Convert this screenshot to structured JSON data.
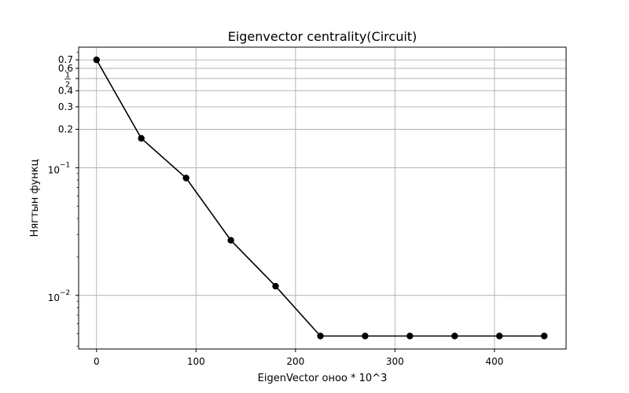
{
  "chart_data": {
    "type": "line",
    "title": "Eigenvector centrality(Circuit)",
    "xlabel": "EigenVector оноо * 10^3",
    "ylabel": "Нягтын функц",
    "yscale": "log",
    "xlim": [
      -18,
      472
    ],
    "ylim": [
      0.0038,
      0.88
    ],
    "x_ticks": [
      0,
      100,
      200,
      300,
      400
    ],
    "x_tick_labels": [
      "0",
      "100",
      "200",
      "300",
      "400"
    ],
    "y_ticks": [
      {
        "value": 0.7,
        "label": "0.7"
      },
      {
        "value": 0.6,
        "label": "0.6"
      },
      {
        "value": 0.5,
        "label": "1/2"
      },
      {
        "value": 0.4,
        "label": "0.4"
      },
      {
        "value": 0.3,
        "label": "0.3"
      },
      {
        "value": 0.2,
        "label": "0.2"
      },
      {
        "value": 0.1,
        "label": "10^-1"
      },
      {
        "value": 0.01,
        "label": "10^-2"
      }
    ],
    "grid": true,
    "color": "#000000",
    "marker": "circle",
    "series": [
      {
        "x": [
          0,
          45,
          90,
          135,
          180,
          225,
          270,
          315,
          360,
          405,
          450
        ],
        "values": [
          0.7,
          0.17,
          0.083,
          0.027,
          0.0118,
          0.0048,
          0.0048,
          0.0048,
          0.0048,
          0.0048,
          0.0048
        ]
      }
    ]
  }
}
